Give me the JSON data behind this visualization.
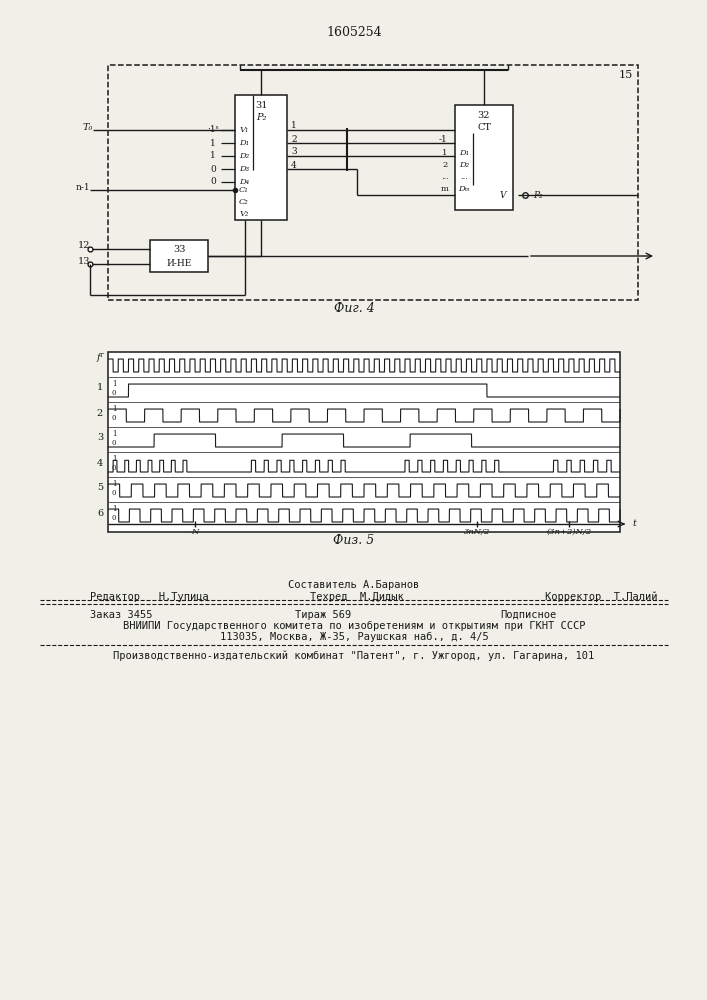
{
  "title_number": "1605254",
  "fig4_caption": "Фиг. 4",
  "fig5_caption": "Физ. 5",
  "bg_color": "#f0efe8",
  "line_color": "#1a1a1a",
  "text_color": "#1a1a1a"
}
